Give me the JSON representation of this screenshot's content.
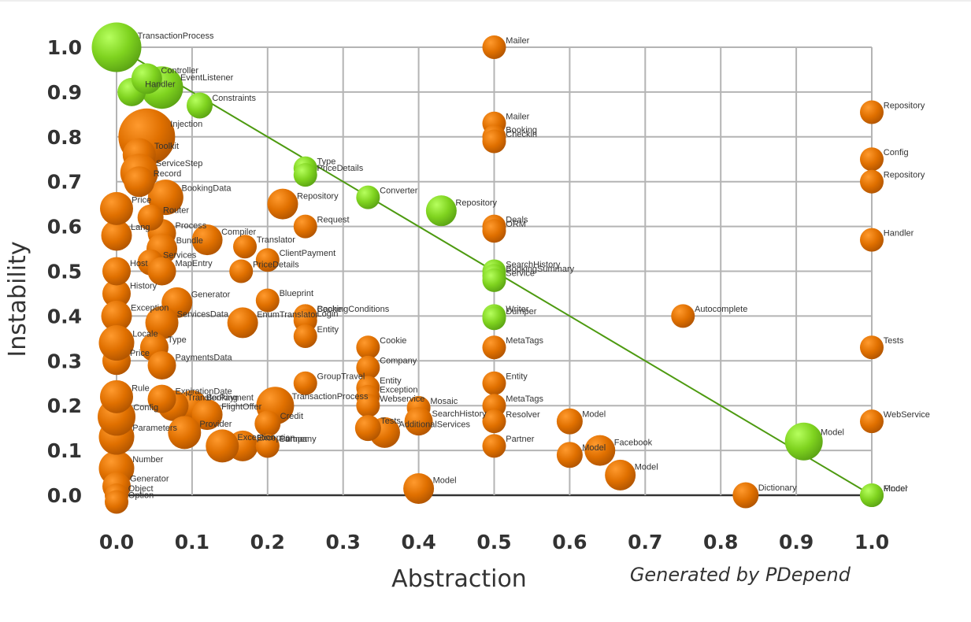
{
  "chart_data": {
    "type": "scatter",
    "xlabel": "Abstraction",
    "ylabel": "Instability",
    "credit": "Generated by PDepend",
    "xlim": [
      0.0,
      1.0
    ],
    "ylim": [
      0.0,
      1.0
    ],
    "x_ticks": [
      "0.0",
      "0.1",
      "0.2",
      "0.3",
      "0.4",
      "0.5",
      "0.6",
      "0.7",
      "0.8",
      "0.9",
      "1.0"
    ],
    "y_ticks": [
      "0.0",
      "0.1",
      "0.2",
      "0.3",
      "0.4",
      "0.5",
      "0.6",
      "0.7",
      "0.8",
      "0.9",
      "1.0"
    ],
    "grid": true,
    "main_sequence": [
      [
        0.0,
        1.0
      ],
      [
        1.0,
        0.0
      ]
    ],
    "colors": {
      "off_sequence": "#e07000",
      "near_sequence": "#7fd31f",
      "main_sequence_line": "#4d9a10",
      "grid": "#b4b4b4"
    },
    "points": [
      {
        "label": "Mailer",
        "x": 0.5,
        "y": 1.0,
        "size": 1,
        "status": "off"
      },
      {
        "label": "Mailer",
        "x": 0.5,
        "y": 0.83,
        "size": 1,
        "status": "off"
      },
      {
        "label": "Booking",
        "x": 0.5,
        "y": 0.8,
        "size": 1,
        "status": "off"
      },
      {
        "label": "Checkin",
        "x": 0.5,
        "y": 0.79,
        "size": 1,
        "status": "off"
      },
      {
        "label": "Repository",
        "x": 1.0,
        "y": 0.855,
        "size": 1,
        "status": "off"
      },
      {
        "label": "Config",
        "x": 1.0,
        "y": 0.75,
        "size": 1,
        "status": "off"
      },
      {
        "label": "Repository",
        "x": 1.0,
        "y": 0.7,
        "size": 1,
        "status": "off"
      },
      {
        "label": "Handler",
        "x": 1.0,
        "y": 0.57,
        "size": 1,
        "status": "off"
      },
      {
        "label": "Tests",
        "x": 1.0,
        "y": 0.33,
        "size": 1,
        "status": "off"
      },
      {
        "label": "WebService",
        "x": 1.0,
        "y": 0.165,
        "size": 1,
        "status": "off"
      },
      {
        "label": "Type",
        "x": 0.25,
        "y": 0.73,
        "size": 1,
        "status": "near"
      },
      {
        "label": "PriceDetails",
        "x": 0.25,
        "y": 0.715,
        "size": 1,
        "status": "near"
      },
      {
        "label": "Converter",
        "x": 0.333,
        "y": 0.665,
        "size": 1,
        "status": "near"
      },
      {
        "label": "Repository",
        "x": 0.43,
        "y": 0.635,
        "size": 1.3,
        "status": "near"
      },
      {
        "label": "Repository",
        "x": 0.22,
        "y": 0.65,
        "size": 1.3,
        "status": "off"
      },
      {
        "label": "Request",
        "x": 0.25,
        "y": 0.6,
        "size": 1,
        "status": "off"
      },
      {
        "label": "Deals",
        "x": 0.5,
        "y": 0.6,
        "size": 1,
        "status": "off"
      },
      {
        "label": "ORM",
        "x": 0.5,
        "y": 0.59,
        "size": 1,
        "status": "off"
      },
      {
        "label": "SearchHistory",
        "x": 0.5,
        "y": 0.5,
        "size": 1,
        "status": "near"
      },
      {
        "label": "BookingSummary",
        "x": 0.5,
        "y": 0.49,
        "size": 1,
        "status": "near"
      },
      {
        "label": "Service",
        "x": 0.5,
        "y": 0.48,
        "size": 1,
        "status": "near"
      },
      {
        "label": "Writer",
        "x": 0.5,
        "y": 0.4,
        "size": 1,
        "status": "near"
      },
      {
        "label": "Dumper",
        "x": 0.5,
        "y": 0.395,
        "size": 1,
        "status": "near"
      },
      {
        "label": "MetaTags",
        "x": 0.5,
        "y": 0.33,
        "size": 1,
        "status": "off"
      },
      {
        "label": "Entity",
        "x": 0.5,
        "y": 0.25,
        "size": 1,
        "status": "off"
      },
      {
        "label": "MetaTags",
        "x": 0.5,
        "y": 0.2,
        "size": 1,
        "status": "off"
      },
      {
        "label": "Resolver",
        "x": 0.5,
        "y": 0.165,
        "size": 1,
        "status": "off"
      },
      {
        "label": "Partner",
        "x": 0.5,
        "y": 0.11,
        "size": 1,
        "status": "off"
      },
      {
        "label": "Translator",
        "x": 0.17,
        "y": 0.555,
        "size": 1,
        "status": "off"
      },
      {
        "label": "ClientPayment",
        "x": 0.2,
        "y": 0.525,
        "size": 1,
        "status": "off"
      },
      {
        "label": "PriceDetails",
        "x": 0.165,
        "y": 0.5,
        "size": 1,
        "status": "off"
      },
      {
        "label": "Blueprint",
        "x": 0.2,
        "y": 0.435,
        "size": 1,
        "status": "off"
      },
      {
        "label": "BookingConditions",
        "x": 0.25,
        "y": 0.4,
        "size": 1,
        "status": "off"
      },
      {
        "label": "EnumTranslator",
        "x": 0.167,
        "y": 0.385,
        "size": 1.3,
        "status": "off"
      },
      {
        "label": "Cache",
        "x": 0.25,
        "y": 0.4,
        "size": 1,
        "status": "off"
      },
      {
        "label": "Login",
        "x": 0.25,
        "y": 0.39,
        "size": 1,
        "status": "off"
      },
      {
        "label": "Entity",
        "x": 0.25,
        "y": 0.355,
        "size": 1,
        "status": "off"
      },
      {
        "label": "Cookie",
        "x": 0.333,
        "y": 0.33,
        "size": 1,
        "status": "off"
      },
      {
        "label": "Company",
        "x": 0.333,
        "y": 0.285,
        "size": 1,
        "status": "off"
      },
      {
        "label": "GroupTravel",
        "x": 0.25,
        "y": 0.25,
        "size": 1,
        "status": "off"
      },
      {
        "label": "Entity",
        "x": 0.333,
        "y": 0.24,
        "size": 1,
        "status": "off"
      },
      {
        "label": "TransactionProcess",
        "x": 0.21,
        "y": 0.2,
        "size": 1.6,
        "status": "off"
      },
      {
        "label": "Exception",
        "x": 0.333,
        "y": 0.22,
        "size": 1,
        "status": "off"
      },
      {
        "label": "Webservice",
        "x": 0.333,
        "y": 0.2,
        "size": 1,
        "status": "off"
      },
      {
        "label": "Mosaic",
        "x": 0.4,
        "y": 0.195,
        "size": 1,
        "status": "off"
      },
      {
        "label": "SearchHistory",
        "x": 0.4,
        "y": 0.165,
        "size": 1.2,
        "status": "off"
      },
      {
        "label": "AdditionalServices",
        "x": 0.355,
        "y": 0.14,
        "size": 1.3,
        "status": "off"
      },
      {
        "label": "Tests",
        "x": 0.333,
        "y": 0.15,
        "size": 1.1,
        "status": "off"
      },
      {
        "label": "Model",
        "x": 0.4,
        "y": 0.015,
        "size": 1.3,
        "status": "off"
      },
      {
        "label": "Model",
        "x": 0.6,
        "y": 0.165,
        "size": 1.1,
        "status": "off"
      },
      {
        "label": "Facebook",
        "x": 0.64,
        "y": 0.1,
        "size": 1.3,
        "status": "off"
      },
      {
        "label": "Model",
        "x": 0.6,
        "y": 0.09,
        "size": 1.1,
        "status": "off"
      },
      {
        "label": "Model",
        "x": 0.667,
        "y": 0.045,
        "size": 1.3,
        "status": "off"
      },
      {
        "label": "Autocomplete",
        "x": 0.75,
        "y": 0.4,
        "size": 1,
        "status": "off"
      },
      {
        "label": "Dictionary",
        "x": 0.833,
        "y": 0.0,
        "size": 1.1,
        "status": "off"
      },
      {
        "label": "Model",
        "x": 0.91,
        "y": 0.12,
        "size": 1.6,
        "status": "near"
      },
      {
        "label": "Model",
        "x": 1.0,
        "y": 0.0,
        "size": 1,
        "status": "near"
      },
      {
        "label": "Finder",
        "x": 1.0,
        "y": 0.0,
        "size": 1,
        "status": "near"
      },
      {
        "label": "Booking",
        "x": 0.1,
        "y": 0.2,
        "size": 1.3,
        "status": "off"
      },
      {
        "label": "TransferPayment",
        "x": 0.075,
        "y": 0.2,
        "size": 1.3,
        "status": "off"
      },
      {
        "label": "FlightOffer",
        "x": 0.12,
        "y": 0.18,
        "size": 1.3,
        "status": "off"
      },
      {
        "label": "ExpirationDate",
        "x": 0.06,
        "y": 0.215,
        "size": 1.2,
        "status": "off"
      },
      {
        "label": "Credit",
        "x": 0.2,
        "y": 0.16,
        "size": 1.1,
        "status": "off"
      },
      {
        "label": "Exception",
        "x": 0.167,
        "y": 0.11,
        "size": 1.3,
        "status": "off"
      },
      {
        "label": "Partner",
        "x": 0.2,
        "y": 0.11,
        "size": 1,
        "status": "off"
      },
      {
        "label": "Exception",
        "x": 0.14,
        "y": 0.11,
        "size": 1.4,
        "status": "off"
      },
      {
        "label": "Company",
        "x": 0.2,
        "y": 0.11,
        "size": 1,
        "status": "off"
      },
      {
        "label": "Provider",
        "x": 0.09,
        "y": 0.14,
        "size": 1.4,
        "status": "off"
      },
      {
        "label": "BookingData",
        "x": 0.065,
        "y": 0.665,
        "size": 1.5,
        "status": "off"
      },
      {
        "label": "Process",
        "x": 0.06,
        "y": 0.585,
        "size": 1.2,
        "status": "off"
      },
      {
        "label": "Router",
        "x": 0.045,
        "y": 0.62,
        "size": 1.1,
        "status": "off"
      },
      {
        "label": "Compiler",
        "x": 0.12,
        "y": 0.57,
        "size": 1.3,
        "status": "off"
      },
      {
        "label": "Bundle",
        "x": 0.06,
        "y": 0.55,
        "size": 1.3,
        "status": "off"
      },
      {
        "label": "Services",
        "x": 0.045,
        "y": 0.52,
        "size": 1.1,
        "status": "off"
      },
      {
        "label": "MapEntry",
        "x": 0.06,
        "y": 0.5,
        "size": 1.2,
        "status": "off"
      },
      {
        "label": "Generator",
        "x": 0.08,
        "y": 0.43,
        "size": 1.3,
        "status": "off"
      },
      {
        "label": "ServicesData",
        "x": 0.06,
        "y": 0.385,
        "size": 1.4,
        "status": "off"
      },
      {
        "label": "Type",
        "x": 0.05,
        "y": 0.33,
        "size": 1.2,
        "status": "off"
      },
      {
        "label": "PaymentsData",
        "x": 0.06,
        "y": 0.29,
        "size": 1.2,
        "status": "off"
      },
      {
        "label": "Constraints",
        "x": 0.11,
        "y": 0.87,
        "size": 1.1,
        "status": "near"
      },
      {
        "label": "EventListener",
        "x": 0.06,
        "y": 0.91,
        "size": 1.8,
        "status": "near"
      },
      {
        "label": "Handler",
        "x": 0.02,
        "y": 0.9,
        "size": 1.2,
        "status": "near"
      },
      {
        "label": "Controller",
        "x": 0.04,
        "y": 0.93,
        "size": 1.3,
        "status": "near"
      },
      {
        "label": "TransactionProcess",
        "x": 0.0,
        "y": 1.0,
        "size": 2.1,
        "status": "near"
      },
      {
        "label": "Injection",
        "x": 0.04,
        "y": 0.8,
        "size": 2.4,
        "status": "off"
      },
      {
        "label": "Toolkit",
        "x": 0.03,
        "y": 0.76,
        "size": 1.4,
        "status": "off"
      },
      {
        "label": "ServiceStep",
        "x": 0.03,
        "y": 0.72,
        "size": 1.6,
        "status": "off"
      },
      {
        "label": "Record",
        "x": 0.03,
        "y": 0.7,
        "size": 1.3,
        "status": "off"
      },
      {
        "label": "History",
        "x": 0.0,
        "y": 0.45,
        "size": 1.2,
        "status": "off"
      },
      {
        "label": "Exception",
        "x": 0.0,
        "y": 0.4,
        "size": 1.3,
        "status": "off"
      },
      {
        "label": "Number",
        "x": 0.0,
        "y": 0.06,
        "size": 1.5,
        "status": "off"
      },
      {
        "label": "Generator",
        "x": 0.0,
        "y": 0.02,
        "size": 1.2,
        "status": "off"
      },
      {
        "label": "Object",
        "x": 0.0,
        "y": 0.0,
        "size": 1.0,
        "status": "off"
      },
      {
        "label": "Option",
        "x": 0.0,
        "y": -0.015,
        "size": 1.0,
        "status": "off"
      },
      {
        "label": "Parameters",
        "x": 0.0,
        "y": 0.13,
        "size": 1.5,
        "status": "off"
      },
      {
        "label": "Config",
        "x": 0.0,
        "y": 0.175,
        "size": 1.6,
        "status": "off"
      },
      {
        "label": "Rule",
        "x": 0.0,
        "y": 0.22,
        "size": 1.4,
        "status": "off"
      },
      {
        "label": "Price",
        "x": 0.0,
        "y": 0.3,
        "size": 1.2,
        "status": "off"
      },
      {
        "label": "Locale",
        "x": 0.0,
        "y": 0.34,
        "size": 1.5,
        "status": "off"
      },
      {
        "label": "Host",
        "x": 0.0,
        "y": 0.5,
        "size": 1.2,
        "status": "off"
      },
      {
        "label": "Lang",
        "x": 0.0,
        "y": 0.58,
        "size": 1.3,
        "status": "off"
      },
      {
        "label": "Price",
        "x": 0.0,
        "y": 0.64,
        "size": 1.4,
        "status": "off"
      }
    ]
  }
}
